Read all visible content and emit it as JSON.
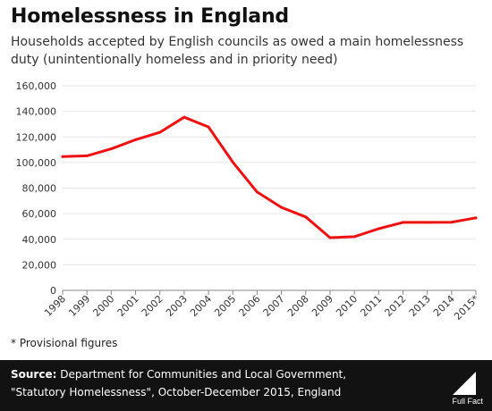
{
  "header": {
    "title": "Homelessness in England",
    "subtitle": "Households accepted by English councils as owed a main homelessness duty (unintentionally homeless and in priority need)"
  },
  "note": "* Provisional figures",
  "footer": {
    "source_label": "Source:",
    "source_text": "Department for Communities and Local Government, \"Statutory Homelessness\", October-December 2015, England",
    "logo_text": "Full Fact"
  },
  "chart_data": {
    "type": "line",
    "categories": [
      "1998",
      "1999",
      "2000",
      "2001",
      "2002",
      "2003",
      "2004",
      "2005",
      "2006",
      "2007",
      "2008",
      "2009",
      "2010",
      "2011",
      "2012",
      "2013",
      "2014",
      "2015*"
    ],
    "series": [
      {
        "values": [
          104600,
          105200,
          110700,
          117800,
          123600,
          135400,
          127800,
          100300,
          76900,
          64900,
          57400,
          41200,
          42000,
          48200,
          53200,
          53200,
          53300,
          56700
        ]
      }
    ],
    "yticks": [
      "0",
      "20,000",
      "40,000",
      "60,000",
      "80,000",
      "100,000",
      "120,000",
      "140,000",
      "160,000"
    ],
    "ylim": [
      0,
      160000
    ],
    "line_color": "#ee1111",
    "grid_color": "#e6e6e6",
    "grid": true
  }
}
